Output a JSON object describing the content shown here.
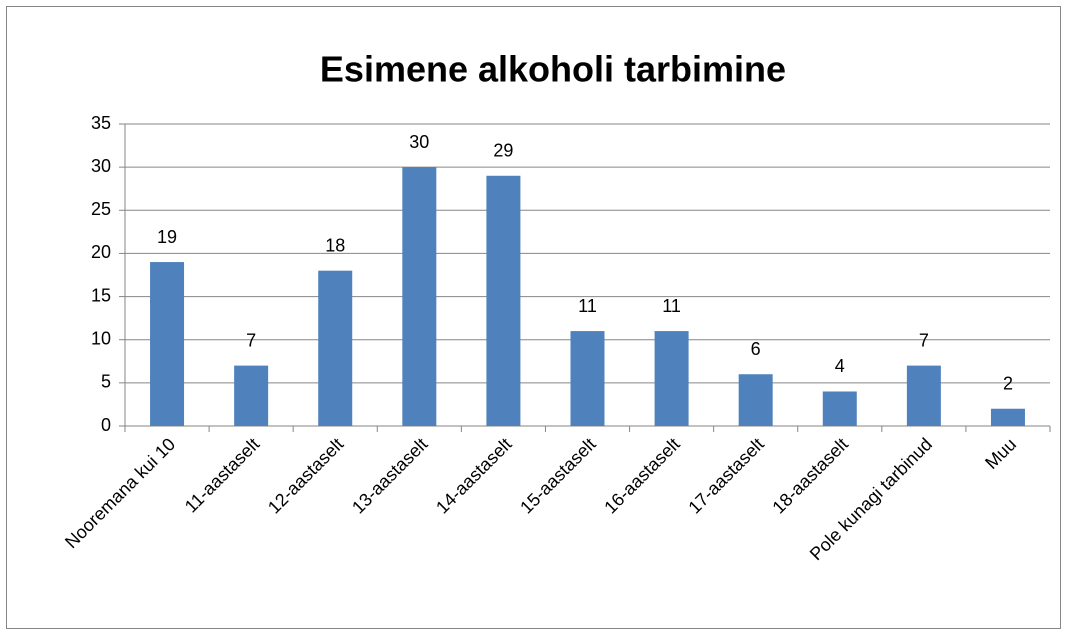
{
  "chart_data": {
    "type": "bar",
    "title": "Esimene alkoholi tarbimine",
    "categories": [
      "Nooremana kui 10",
      "11-aastaselt",
      "12-aastaselt",
      "13-aastaselt",
      "14-aastaselt",
      "15-aastaselt",
      "16-aastaselt",
      "17-aastaselt",
      "18-aastaselt",
      "Pole kunagi tarbinud",
      "Muu"
    ],
    "values": [
      19,
      7,
      18,
      30,
      29,
      11,
      11,
      6,
      4,
      7,
      2
    ],
    "color": "#4f81bd",
    "ylim": [
      0,
      35
    ],
    "yticks": [
      0,
      5,
      10,
      15,
      20,
      25,
      30,
      35
    ],
    "grid": true
  }
}
